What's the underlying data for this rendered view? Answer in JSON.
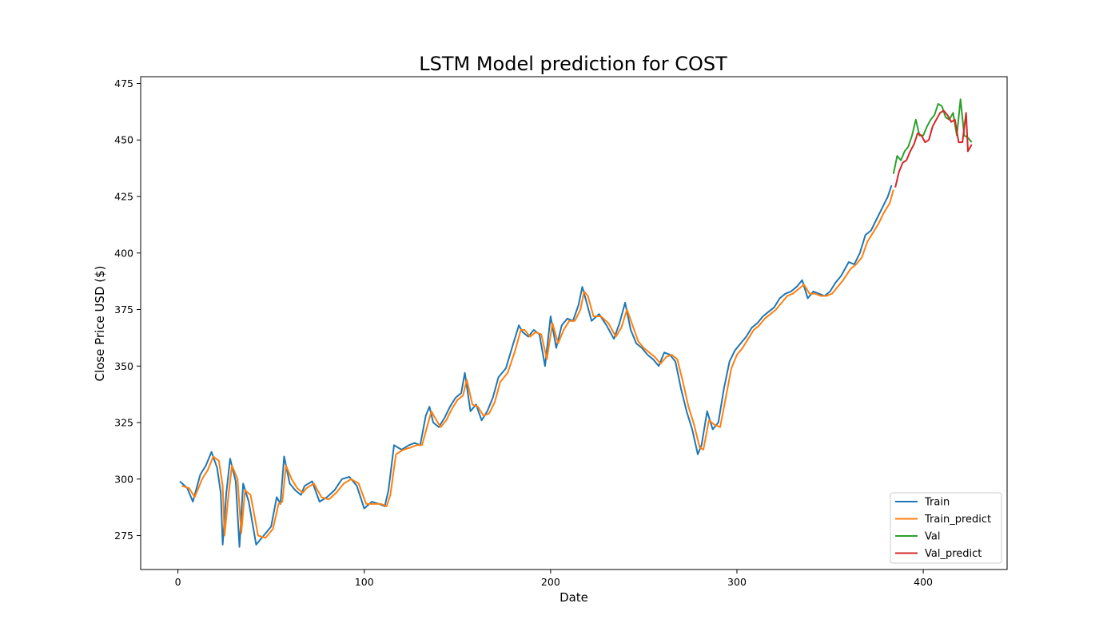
{
  "chart_data": {
    "type": "line",
    "title": "LSTM Model prediction for COST",
    "xlabel": "Date",
    "ylabel": "Close Price USD ($)",
    "xlim": [
      -20,
      445
    ],
    "ylim": [
      260,
      478
    ],
    "xticks": [
      0,
      100,
      200,
      300,
      400
    ],
    "yticks": [
      275,
      300,
      325,
      350,
      375,
      400,
      425,
      450,
      475
    ],
    "grid": false,
    "legend_position": "lower-right",
    "colors": {
      "Train": "#1f77b4",
      "Train_predict": "#ff7f0e",
      "Val": "#2ca02c",
      "Val_predict": "#d62728"
    },
    "series": [
      {
        "name": "Train",
        "x": [
          1,
          5,
          8,
          12,
          15,
          18,
          21,
          23,
          24,
          26,
          28,
          31,
          33,
          35,
          38,
          42,
          46,
          50,
          53,
          55,
          57,
          60,
          63,
          66,
          68,
          72,
          76,
          80,
          84,
          88,
          92,
          96,
          100,
          104,
          108,
          111,
          113,
          116,
          120,
          124,
          127,
          130,
          133,
          135,
          137,
          140,
          143,
          146,
          149,
          152,
          154,
          157,
          160,
          163,
          166,
          169,
          172,
          176,
          180,
          183,
          185,
          188,
          191,
          194,
          197,
          200,
          203,
          206,
          209,
          212,
          215,
          217,
          219,
          222,
          226,
          230,
          234,
          237,
          240,
          243,
          246,
          249,
          252,
          255,
          258,
          261,
          264,
          267,
          270,
          273,
          276,
          279,
          281,
          284,
          287,
          290,
          293,
          296,
          299,
          302,
          305,
          308,
          311,
          314,
          317,
          320,
          323,
          326,
          329,
          332,
          335,
          338,
          341,
          344,
          347,
          350,
          353,
          356,
          360,
          363,
          366,
          369,
          372,
          375,
          378,
          381,
          383
        ],
        "values": [
          299,
          296,
          290,
          302,
          306,
          312,
          305,
          294,
          271,
          294,
          309,
          299,
          270,
          298,
          290,
          271,
          275,
          279,
          292,
          289,
          310,
          298,
          295,
          293,
          297,
          299,
          290,
          292,
          295,
          300,
          301,
          297,
          287,
          290,
          289,
          288,
          295,
          315,
          313,
          315,
          316,
          315,
          328,
          332,
          325,
          323,
          327,
          332,
          336,
          338,
          347,
          330,
          333,
          326,
          330,
          336,
          345,
          349,
          360,
          368,
          365,
          363,
          366,
          364,
          350,
          372,
          358,
          368,
          371,
          370,
          377,
          385,
          379,
          370,
          373,
          368,
          362,
          369,
          378,
          366,
          360,
          358,
          355,
          353,
          350,
          356,
          355,
          352,
          340,
          330,
          322,
          311,
          315,
          330,
          322,
          325,
          340,
          352,
          357,
          360,
          363,
          367,
          369,
          372,
          374,
          376,
          380,
          382,
          383,
          385,
          388,
          380,
          383,
          382,
          381,
          383,
          387,
          390,
          396,
          395,
          400,
          408,
          410,
          415,
          420,
          425,
          430
        ]
      },
      {
        "name": "Train_predict",
        "x": [
          2,
          6,
          9,
          13,
          16,
          19,
          22,
          24,
          25,
          27,
          29,
          32,
          34,
          36,
          39,
          43,
          47,
          51,
          54,
          56,
          58,
          61,
          64,
          67,
          69,
          73,
          77,
          81,
          85,
          89,
          93,
          97,
          101,
          105,
          109,
          112,
          114,
          117,
          121,
          125,
          128,
          131,
          134,
          136,
          138,
          141,
          144,
          147,
          150,
          153,
          155,
          158,
          161,
          164,
          167,
          170,
          173,
          177,
          181,
          184,
          186,
          189,
          192,
          195,
          198,
          201,
          204,
          207,
          210,
          213,
          216,
          218,
          220,
          223,
          227,
          231,
          235,
          238,
          241,
          244,
          247,
          250,
          253,
          256,
          259,
          262,
          265,
          268,
          271,
          274,
          277,
          280,
          282,
          285,
          288,
          291,
          294,
          297,
          300,
          303,
          306,
          309,
          312,
          315,
          318,
          321,
          324,
          327,
          330,
          333,
          336,
          339,
          342,
          345,
          348,
          351,
          354,
          357,
          361,
          364,
          367,
          370,
          373,
          376,
          379,
          382,
          384
        ],
        "values": [
          297,
          296,
          292,
          300,
          304,
          310,
          308,
          297,
          275,
          292,
          306,
          300,
          276,
          295,
          293,
          275,
          274,
          278,
          289,
          290,
          306,
          300,
          296,
          294,
          296,
          298,
          292,
          291,
          294,
          298,
          300,
          298,
          289,
          289,
          289,
          288,
          293,
          311,
          313,
          314,
          315,
          315,
          324,
          330,
          327,
          323,
          326,
          331,
          335,
          337,
          344,
          333,
          332,
          328,
          329,
          334,
          343,
          347,
          357,
          366,
          366,
          363,
          365,
          364,
          353,
          369,
          360,
          366,
          370,
          370,
          375,
          383,
          381,
          372,
          372,
          369,
          363,
          367,
          375,
          368,
          361,
          358,
          356,
          354,
          351,
          354,
          355,
          353,
          343,
          332,
          324,
          314,
          313,
          326,
          324,
          323,
          336,
          349,
          355,
          358,
          362,
          366,
          368,
          371,
          373,
          375,
          378,
          381,
          382,
          384,
          386,
          382,
          382,
          381,
          381,
          382,
          385,
          388,
          393,
          395,
          398,
          405,
          409,
          413,
          418,
          422,
          428
        ]
      },
      {
        "name": "Val",
        "x": [
          384,
          386,
          388,
          390,
          392,
          394,
          396,
          398,
          400,
          402,
          404,
          406,
          408,
          410,
          412,
          414,
          416,
          418,
          420,
          422,
          424,
          426
        ],
        "values": [
          435,
          443,
          441,
          445,
          447,
          452,
          459,
          452,
          452,
          456,
          459,
          461,
          466,
          465,
          460,
          459,
          462,
          452,
          468,
          452,
          451,
          449
        ]
      },
      {
        "name": "Val_predict",
        "x": [
          385,
          387,
          389,
          391,
          393,
          395,
          397,
          399,
          401,
          403,
          405,
          407,
          409,
          411,
          413,
          415,
          417,
          419,
          421,
          423,
          424,
          426
        ],
        "values": [
          429,
          436,
          440,
          441,
          445,
          448,
          453,
          452,
          449,
          450,
          456,
          459,
          462,
          463,
          461,
          458,
          459,
          449,
          449,
          462,
          445,
          448
        ]
      }
    ]
  }
}
